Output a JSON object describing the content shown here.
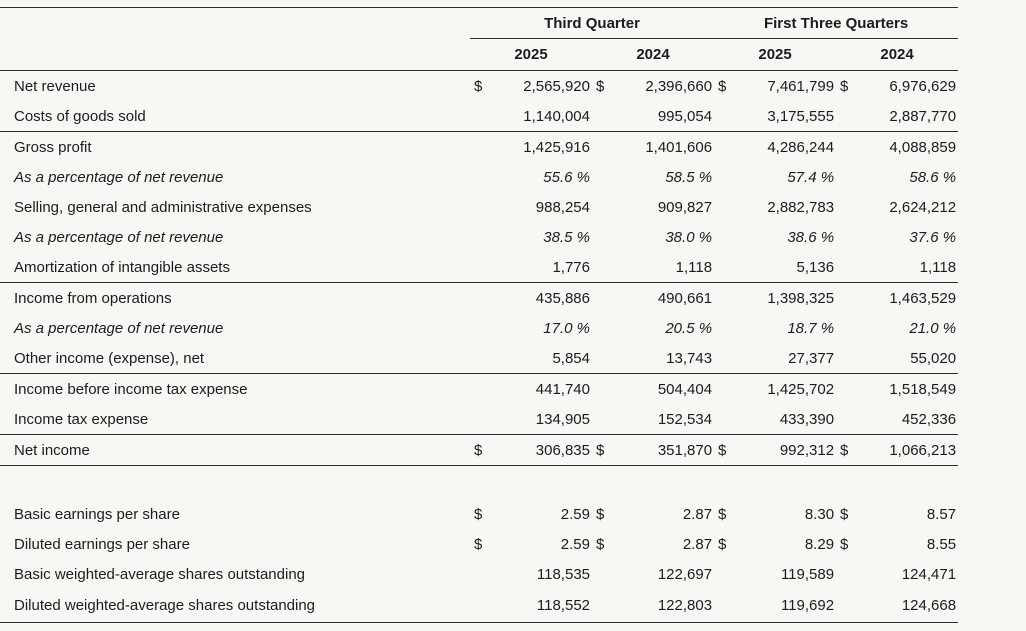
{
  "colors": {
    "background": "#f8f7f4",
    "text": "#1d1c1a",
    "rule": "#2e2d2b"
  },
  "table": {
    "currency_symbol": "$",
    "column_groups": [
      {
        "label": "Third Quarter",
        "years": [
          "2025",
          "2024"
        ]
      },
      {
        "label": "First Three Quarters",
        "years": [
          "2025",
          "2024"
        ]
      }
    ],
    "rows": [
      {
        "label": "Net revenue",
        "dollar": true,
        "values": [
          "2,565,920",
          "2,396,660",
          "7,461,799",
          "6,976,629"
        ]
      },
      {
        "label": "Costs of goods sold",
        "values": [
          "1,140,004",
          "995,054",
          "3,175,555",
          "2,887,770"
        ]
      },
      {
        "label": "Gross profit",
        "rule_above": true,
        "values": [
          "1,425,916",
          "1,401,606",
          "4,286,244",
          "4,088,859"
        ]
      },
      {
        "label": "As a percentage of net revenue",
        "italic": true,
        "values": [
          "55.6 %",
          "58.5 %",
          "57.4 %",
          "58.6 %"
        ]
      },
      {
        "label": "Selling, general and administrative expenses",
        "values": [
          "988,254",
          "909,827",
          "2,882,783",
          "2,624,212"
        ]
      },
      {
        "label": "As a percentage of net revenue",
        "italic": true,
        "values": [
          "38.5 %",
          "38.0 %",
          "38.6 %",
          "37.6 %"
        ]
      },
      {
        "label": "Amortization of intangible assets",
        "values": [
          "1,776",
          "1,118",
          "5,136",
          "1,118"
        ]
      },
      {
        "label": "Income from operations",
        "rule_above": true,
        "values": [
          "435,886",
          "490,661",
          "1,398,325",
          "1,463,529"
        ]
      },
      {
        "label": "As a percentage of net revenue",
        "italic": true,
        "values": [
          "17.0 %",
          "20.5 %",
          "18.7 %",
          "21.0 %"
        ]
      },
      {
        "label": "Other income (expense), net",
        "values": [
          "5,854",
          "13,743",
          "27,377",
          "55,020"
        ]
      },
      {
        "label": "Income before income tax expense",
        "rule_above": true,
        "values": [
          "441,740",
          "504,404",
          "1,425,702",
          "1,518,549"
        ]
      },
      {
        "label": "Income tax expense",
        "values": [
          "134,905",
          "152,534",
          "433,390",
          "452,336"
        ]
      },
      {
        "label": "Net income",
        "dollar": true,
        "rule_above": true,
        "rule_below": true,
        "values": [
          "306,835",
          "351,870",
          "992,312",
          "1,066,213"
        ]
      },
      {
        "label": "",
        "spacer": true,
        "values": []
      },
      {
        "label": "Basic earnings per share",
        "dollar": true,
        "values": [
          "2.59",
          "2.87",
          "8.30",
          "8.57"
        ]
      },
      {
        "label": "Diluted earnings per share",
        "dollar": true,
        "values": [
          "2.59",
          "2.87",
          "8.29",
          "8.55"
        ]
      },
      {
        "label": "Basic weighted-average shares outstanding",
        "values": [
          "118,535",
          "122,697",
          "119,589",
          "124,471"
        ]
      },
      {
        "label": "Diluted weighted-average shares outstanding",
        "rule_below": true,
        "values": [
          "118,552",
          "122,803",
          "119,692",
          "124,668"
        ]
      }
    ]
  }
}
